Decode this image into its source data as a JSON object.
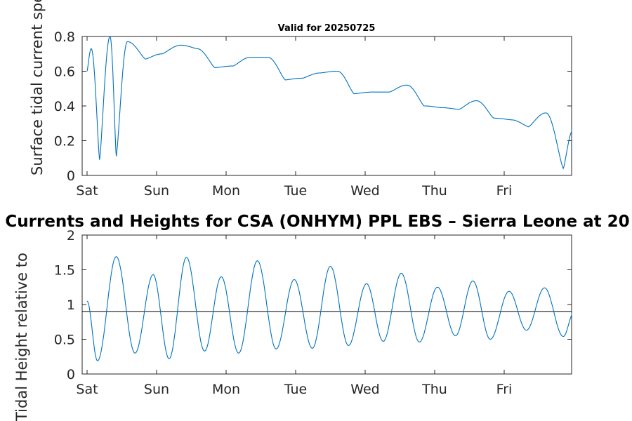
{
  "chart_data": [
    {
      "type": "line",
      "title": "Valid for 20250725",
      "ylabel": "Surface tidal current speed, knots",
      "ylim": [
        0,
        0.8
      ],
      "yticks": [
        "0",
        "0.2",
        "0.4",
        "0.6",
        "0.8"
      ],
      "xticks": [
        "Sat",
        "Sun",
        "Mon",
        "Tue",
        "Wed",
        "Thu",
        "Fri"
      ],
      "xlim_days": [
        0,
        7
      ],
      "series": [
        {
          "color": "#0072BD",
          "description": "semidiurnal tidal current speed, peaks decreasing over the week",
          "x": [
            0.0,
            0.06,
            0.18,
            0.33,
            0.42,
            0.58,
            0.84,
            1.08,
            1.35,
            1.58,
            1.84,
            2.1,
            2.35,
            2.6,
            2.85,
            3.1,
            3.35,
            3.6,
            3.84,
            4.1,
            4.35,
            4.6,
            4.85,
            5.1,
            5.35,
            5.6,
            5.85,
            6.1,
            6.35,
            6.6,
            6.85,
            6.99
          ],
          "y": [
            0.6,
            0.73,
            0.09,
            0.8,
            0.11,
            0.77,
            0.67,
            0.7,
            0.75,
            0.73,
            0.62,
            0.63,
            0.68,
            0.68,
            0.55,
            0.56,
            0.59,
            0.6,
            0.47,
            0.48,
            0.48,
            0.52,
            0.4,
            0.39,
            0.38,
            0.43,
            0.33,
            0.32,
            0.28,
            0.36,
            0.04,
            0.26
          ]
        }
      ]
    },
    {
      "type": "line",
      "title": "Currents and Heights for CSA (ONHYM) PPL EBS  – Sierra Leone at 20",
      "ylabel": "Tidal Height relative to",
      "ylim": [
        0,
        2
      ],
      "yticks": [
        "0",
        "0.5",
        "1",
        "1.5",
        "2"
      ],
      "xticks": [
        "Sat",
        "Sun",
        "Mon",
        "Tue",
        "Wed",
        "Thu",
        "Fri"
      ],
      "xlim_days": [
        0,
        7
      ],
      "reference_line": 0.9,
      "series": [
        {
          "color": "#0072BD",
          "x": [
            0.0,
            0.15,
            0.42,
            0.69,
            0.95,
            1.18,
            1.43,
            1.69,
            1.93,
            2.18,
            2.45,
            2.72,
            2.98,
            3.24,
            3.5,
            3.76,
            4.02,
            4.26,
            4.52,
            4.78,
            5.04,
            5.3,
            5.55,
            5.8,
            6.07,
            6.32,
            6.58,
            6.85,
            7.0
          ],
          "y": [
            1.05,
            0.19,
            1.69,
            0.3,
            1.43,
            0.22,
            1.68,
            0.33,
            1.4,
            0.3,
            1.63,
            0.36,
            1.36,
            0.37,
            1.55,
            0.41,
            1.3,
            0.47,
            1.45,
            0.46,
            1.25,
            0.55,
            1.34,
            0.5,
            1.19,
            0.63,
            1.24,
            0.54,
            0.88
          ]
        }
      ]
    }
  ]
}
